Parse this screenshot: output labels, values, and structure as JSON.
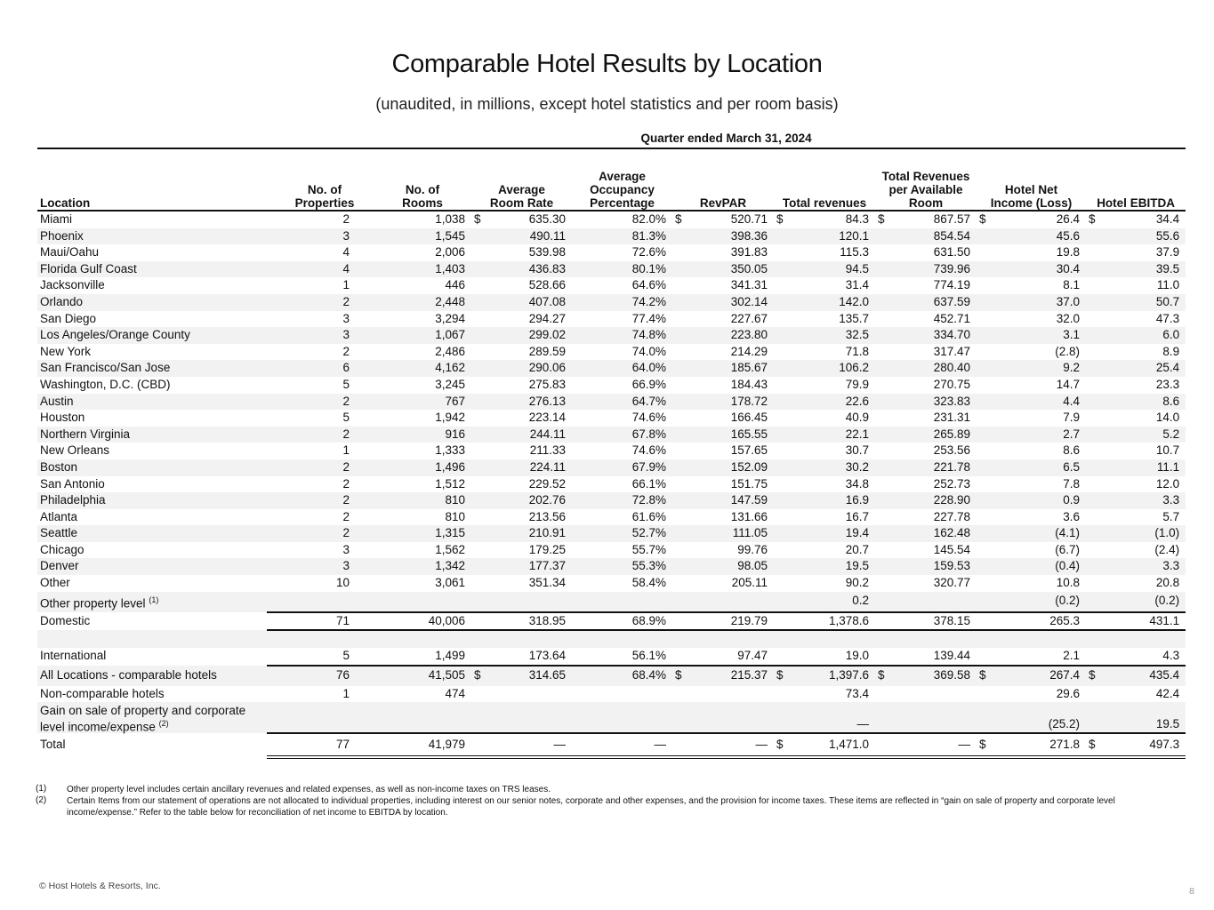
{
  "title": "Comparable Hotel Results by Location",
  "subtitle": "(unaudited, in millions, except hotel statistics and per room basis)",
  "period": "Quarter ended March 31, 2024",
  "dollar_sign": "$",
  "headers": {
    "location": "Location",
    "props": "No. of\nProperties",
    "rooms": "No. of\nRooms",
    "adr": "Average\nRoom Rate",
    "occ": "Average\nOccupancy\nPercentage",
    "revpar": "RevPAR",
    "totrev": "Total revenues",
    "trevpar": "Total Revenues\nper Available\nRoom",
    "hni": "Hotel Net\nIncome (Loss)",
    "ebitda": "Hotel EBITDA"
  },
  "rows": [
    {
      "loc": "Miami",
      "props": "2",
      "rooms": "1,038",
      "adr": "635.30",
      "occ": "82.0%",
      "revpar": "520.71",
      "totrev": "84.3",
      "trevpar": "867.57",
      "hni": "26.4",
      "ebitda": "34.4",
      "dollars": [
        "adr",
        "revpar",
        "totrev",
        "trevpar",
        "hni",
        "ebitda"
      ]
    },
    {
      "loc": "Phoenix",
      "props": "3",
      "rooms": "1,545",
      "adr": "490.11",
      "occ": "81.3%",
      "revpar": "398.36",
      "totrev": "120.1",
      "trevpar": "854.54",
      "hni": "45.6",
      "ebitda": "55.6"
    },
    {
      "loc": "Maui/Oahu",
      "props": "4",
      "rooms": "2,006",
      "adr": "539.98",
      "occ": "72.6%",
      "revpar": "391.83",
      "totrev": "115.3",
      "trevpar": "631.50",
      "hni": "19.8",
      "ebitda": "37.9"
    },
    {
      "loc": "Florida Gulf Coast",
      "props": "4",
      "rooms": "1,403",
      "adr": "436.83",
      "occ": "80.1%",
      "revpar": "350.05",
      "totrev": "94.5",
      "trevpar": "739.96",
      "hni": "30.4",
      "ebitda": "39.5"
    },
    {
      "loc": "Jacksonville",
      "props": "1",
      "rooms": "446",
      "adr": "528.66",
      "occ": "64.6%",
      "revpar": "341.31",
      "totrev": "31.4",
      "trevpar": "774.19",
      "hni": "8.1",
      "ebitda": "11.0"
    },
    {
      "loc": "Orlando",
      "props": "2",
      "rooms": "2,448",
      "adr": "407.08",
      "occ": "74.2%",
      "revpar": "302.14",
      "totrev": "142.0",
      "trevpar": "637.59",
      "hni": "37.0",
      "ebitda": "50.7"
    },
    {
      "loc": "San Diego",
      "props": "3",
      "rooms": "3,294",
      "adr": "294.27",
      "occ": "77.4%",
      "revpar": "227.67",
      "totrev": "135.7",
      "trevpar": "452.71",
      "hni": "32.0",
      "ebitda": "47.3"
    },
    {
      "loc": "Los Angeles/Orange County",
      "props": "3",
      "rooms": "1,067",
      "adr": "299.02",
      "occ": "74.8%",
      "revpar": "223.80",
      "totrev": "32.5",
      "trevpar": "334.70",
      "hni": "3.1",
      "ebitda": "6.0"
    },
    {
      "loc": "New York",
      "props": "2",
      "rooms": "2,486",
      "adr": "289.59",
      "occ": "74.0%",
      "revpar": "214.29",
      "totrev": "71.8",
      "trevpar": "317.47",
      "hni": "(2.8)",
      "ebitda": "8.9"
    },
    {
      "loc": "San Francisco/San Jose",
      "props": "6",
      "rooms": "4,162",
      "adr": "290.06",
      "occ": "64.0%",
      "revpar": "185.67",
      "totrev": "106.2",
      "trevpar": "280.40",
      "hni": "9.2",
      "ebitda": "25.4"
    },
    {
      "loc": "Washington, D.C. (CBD)",
      "props": "5",
      "rooms": "3,245",
      "adr": "275.83",
      "occ": "66.9%",
      "revpar": "184.43",
      "totrev": "79.9",
      "trevpar": "270.75",
      "hni": "14.7",
      "ebitda": "23.3"
    },
    {
      "loc": "Austin",
      "props": "2",
      "rooms": "767",
      "adr": "276.13",
      "occ": "64.7%",
      "revpar": "178.72",
      "totrev": "22.6",
      "trevpar": "323.83",
      "hni": "4.4",
      "ebitda": "8.6"
    },
    {
      "loc": "Houston",
      "props": "5",
      "rooms": "1,942",
      "adr": "223.14",
      "occ": "74.6%",
      "revpar": "166.45",
      "totrev": "40.9",
      "trevpar": "231.31",
      "hni": "7.9",
      "ebitda": "14.0"
    },
    {
      "loc": "Northern Virginia",
      "props": "2",
      "rooms": "916",
      "adr": "244.11",
      "occ": "67.8%",
      "revpar": "165.55",
      "totrev": "22.1",
      "trevpar": "265.89",
      "hni": "2.7",
      "ebitda": "5.2"
    },
    {
      "loc": "New Orleans",
      "props": "1",
      "rooms": "1,333",
      "adr": "211.33",
      "occ": "74.6%",
      "revpar": "157.65",
      "totrev": "30.7",
      "trevpar": "253.56",
      "hni": "8.6",
      "ebitda": "10.7"
    },
    {
      "loc": "Boston",
      "props": "2",
      "rooms": "1,496",
      "adr": "224.11",
      "occ": "67.9%",
      "revpar": "152.09",
      "totrev": "30.2",
      "trevpar": "221.78",
      "hni": "6.5",
      "ebitda": "11.1"
    },
    {
      "loc": "San Antonio",
      "props": "2",
      "rooms": "1,512",
      "adr": "229.52",
      "occ": "66.1%",
      "revpar": "151.75",
      "totrev": "34.8",
      "trevpar": "252.73",
      "hni": "7.8",
      "ebitda": "12.0"
    },
    {
      "loc": "Philadelphia",
      "props": "2",
      "rooms": "810",
      "adr": "202.76",
      "occ": "72.8%",
      "revpar": "147.59",
      "totrev": "16.9",
      "trevpar": "228.90",
      "hni": "0.9",
      "ebitda": "3.3"
    },
    {
      "loc": "Atlanta",
      "props": "2",
      "rooms": "810",
      "adr": "213.56",
      "occ": "61.6%",
      "revpar": "131.66",
      "totrev": "16.7",
      "trevpar": "227.78",
      "hni": "3.6",
      "ebitda": "5.7"
    },
    {
      "loc": "Seattle",
      "props": "2",
      "rooms": "1,315",
      "adr": "210.91",
      "occ": "52.7%",
      "revpar": "111.05",
      "totrev": "19.4",
      "trevpar": "162.48",
      "hni": "(4.1)",
      "ebitda": "(1.0)"
    },
    {
      "loc": "Chicago",
      "props": "3",
      "rooms": "1,562",
      "adr": "179.25",
      "occ": "55.7%",
      "revpar": "99.76",
      "totrev": "20.7",
      "trevpar": "145.54",
      "hni": "(6.7)",
      "ebitda": "(2.4)"
    },
    {
      "loc": "Denver",
      "props": "3",
      "rooms": "1,342",
      "adr": "177.37",
      "occ": "55.3%",
      "revpar": "98.05",
      "totrev": "19.5",
      "trevpar": "159.53",
      "hni": "(0.4)",
      "ebitda": "3.3"
    },
    {
      "loc": "Other",
      "props": "10",
      "rooms": "3,061",
      "adr": "351.34",
      "occ": "58.4%",
      "revpar": "205.11",
      "totrev": "90.2",
      "trevpar": "320.77",
      "hni": "10.8",
      "ebitda": "20.8"
    },
    {
      "loc": "Other property level",
      "sup": "(1)",
      "totrev": "0.2",
      "hni": "(0.2)",
      "ebitda": "(0.2)"
    },
    {
      "loc": "Domestic",
      "props": "71",
      "rooms": "40,006",
      "adr": "318.95",
      "occ": "68.9%",
      "revpar": "219.79",
      "totrev": "1,378.6",
      "trevpar": "378.15",
      "hni": "265.3",
      "ebitda": "431.1",
      "style": "rt rb"
    },
    {
      "loc": "",
      "style": "blank"
    },
    {
      "loc": "International",
      "props": "5",
      "rooms": "1,499",
      "adr": "173.64",
      "occ": "56.1%",
      "revpar": "97.47",
      "totrev": "19.0",
      "trevpar": "139.44",
      "hni": "2.1",
      "ebitda": "4.3",
      "style": "rb"
    },
    {
      "loc": "All Locations - comparable hotels",
      "props": "76",
      "rooms": "41,505",
      "adr": "314.65",
      "occ": "68.4%",
      "revpar": "215.37",
      "totrev": "1,397.6",
      "trevpar": "369.58",
      "hni": "267.4",
      "ebitda": "435.4",
      "dollars": [
        "adr",
        "revpar",
        "totrev",
        "trevpar",
        "hni",
        "ebitda"
      ],
      "style": "tall"
    },
    {
      "loc": "Non-comparable hotels",
      "props": "1",
      "rooms": "474",
      "totrev": "73.4",
      "hni": "29.6",
      "ebitda": "42.4",
      "style": "bottom"
    },
    {
      "loc": "Gain on sale of property and corporate level income/expense",
      "sup": "(2)",
      "totrev": "—",
      "hni": "(25.2)",
      "ebitda": "19.5",
      "style": "two"
    },
    {
      "loc": "Total",
      "props": "77",
      "rooms": "41,979",
      "adr": "—",
      "occ": "—",
      "revpar": "—",
      "totrev": "1,471.0",
      "trevpar": "—",
      "hni": "271.8",
      "ebitda": "497.3",
      "dollars": [
        "totrev",
        "hni",
        "ebitda"
      ],
      "style": "rt rdb total"
    }
  ],
  "footnotes": [
    {
      "n": "(1)",
      "text": "Other property level includes certain ancillary revenues and related expenses, as well as non-income taxes on TRS leases."
    },
    {
      "n": "(2)",
      "text": "Certain Items from our statement of operations are not allocated to individual properties, including interest on our senior notes, corporate and other expenses, and the provision for income taxes. These items are reflected in “gain on sale of property and corporate level income/expense.” Refer to the table below for reconciliation of net income to EBITDA by location."
    }
  ],
  "copyright": "© Host Hotels & Resorts, Inc.",
  "page_number": "8"
}
